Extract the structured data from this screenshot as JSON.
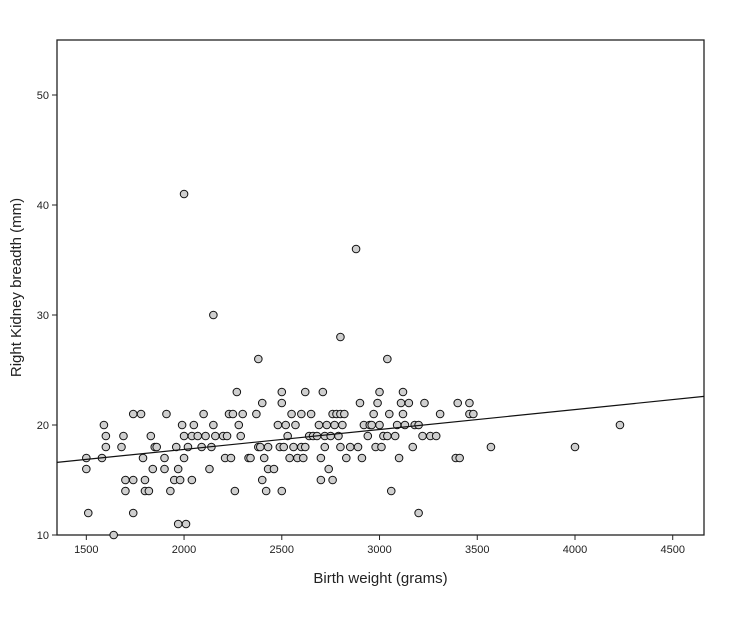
{
  "chart_data": {
    "type": "scatter",
    "xlabel": "Birth weight (grams)",
    "ylabel": "Right Kidney breadth (mm)",
    "xlim": [
      1350,
      4660
    ],
    "ylim": [
      10,
      55
    ],
    "xticks": [
      1500,
      2000,
      2500,
      3000,
      3500,
      4000,
      4500
    ],
    "yticks": [
      10,
      20,
      30,
      40,
      50
    ],
    "grid": false,
    "marker_fill": "#cfcfcf",
    "marker_edge": "#111111",
    "fit_line": {
      "x": [
        1350,
        4660
      ],
      "y": [
        16.6,
        22.6
      ],
      "color": "#111111"
    },
    "points": [
      [
        1500,
        17
      ],
      [
        1500,
        16
      ],
      [
        1510,
        12
      ],
      [
        1580,
        17
      ],
      [
        1590,
        20
      ],
      [
        1600,
        19
      ],
      [
        1600,
        18
      ],
      [
        1640,
        10
      ],
      [
        1680,
        18
      ],
      [
        1690,
        19
      ],
      [
        1700,
        15
      ],
      [
        1700,
        14
      ],
      [
        1740,
        21
      ],
      [
        1740,
        15
      ],
      [
        1740,
        12
      ],
      [
        1780,
        21
      ],
      [
        1790,
        17
      ],
      [
        1800,
        15
      ],
      [
        1800,
        14
      ],
      [
        1820,
        14
      ],
      [
        1830,
        19
      ],
      [
        1840,
        16
      ],
      [
        1850,
        18
      ],
      [
        1860,
        18
      ],
      [
        1900,
        17
      ],
      [
        1900,
        16
      ],
      [
        1910,
        21
      ],
      [
        1930,
        14
      ],
      [
        1950,
        15
      ],
      [
        1960,
        18
      ],
      [
        1970,
        16
      ],
      [
        1970,
        11
      ],
      [
        1980,
        15
      ],
      [
        1990,
        20
      ],
      [
        2000,
        41
      ],
      [
        2000,
        19
      ],
      [
        2000,
        17
      ],
      [
        2010,
        11
      ],
      [
        2020,
        18
      ],
      [
        2040,
        19
      ],
      [
        2040,
        15
      ],
      [
        2050,
        20
      ],
      [
        2070,
        19
      ],
      [
        2090,
        18
      ],
      [
        2100,
        21
      ],
      [
        2110,
        19
      ],
      [
        2130,
        16
      ],
      [
        2140,
        18
      ],
      [
        2150,
        30
      ],
      [
        2150,
        20
      ],
      [
        2160,
        19
      ],
      [
        2200,
        19
      ],
      [
        2210,
        17
      ],
      [
        2220,
        19
      ],
      [
        2230,
        21
      ],
      [
        2240,
        17
      ],
      [
        2250,
        21
      ],
      [
        2260,
        14
      ],
      [
        2270,
        23
      ],
      [
        2280,
        20
      ],
      [
        2290,
        19
      ],
      [
        2300,
        21
      ],
      [
        2330,
        17
      ],
      [
        2340,
        17
      ],
      [
        2370,
        21
      ],
      [
        2380,
        26
      ],
      [
        2380,
        18
      ],
      [
        2390,
        18
      ],
      [
        2400,
        22
      ],
      [
        2400,
        15
      ],
      [
        2410,
        17
      ],
      [
        2420,
        14
      ],
      [
        2430,
        18
      ],
      [
        2430,
        16
      ],
      [
        2460,
        16
      ],
      [
        2480,
        20
      ],
      [
        2490,
        18
      ],
      [
        2500,
        23
      ],
      [
        2500,
        22
      ],
      [
        2500,
        14
      ],
      [
        2510,
        18
      ],
      [
        2520,
        20
      ],
      [
        2530,
        19
      ],
      [
        2540,
        17
      ],
      [
        2550,
        21
      ],
      [
        2560,
        18
      ],
      [
        2570,
        20
      ],
      [
        2580,
        17
      ],
      [
        2600,
        21
      ],
      [
        2600,
        18
      ],
      [
        2610,
        17
      ],
      [
        2620,
        23
      ],
      [
        2620,
        18
      ],
      [
        2640,
        19
      ],
      [
        2650,
        21
      ],
      [
        2660,
        19
      ],
      [
        2680,
        19
      ],
      [
        2690,
        20
      ],
      [
        2700,
        17
      ],
      [
        2700,
        15
      ],
      [
        2710,
        23
      ],
      [
        2720,
        19
      ],
      [
        2720,
        18
      ],
      [
        2730,
        20
      ],
      [
        2740,
        16
      ],
      [
        2750,
        19
      ],
      [
        2760,
        21
      ],
      [
        2760,
        15
      ],
      [
        2770,
        20
      ],
      [
        2780,
        21
      ],
      [
        2790,
        19
      ],
      [
        2800,
        28
      ],
      [
        2800,
        21
      ],
      [
        2800,
        18
      ],
      [
        2810,
        20
      ],
      [
        2820,
        21
      ],
      [
        2830,
        17
      ],
      [
        2850,
        18
      ],
      [
        2880,
        36
      ],
      [
        2890,
        18
      ],
      [
        2900,
        22
      ],
      [
        2910,
        17
      ],
      [
        2920,
        20
      ],
      [
        2940,
        19
      ],
      [
        2950,
        20
      ],
      [
        2960,
        20
      ],
      [
        2970,
        21
      ],
      [
        2980,
        18
      ],
      [
        2990,
        22
      ],
      [
        3000,
        23
      ],
      [
        3000,
        20
      ],
      [
        3010,
        18
      ],
      [
        3020,
        19
      ],
      [
        3040,
        26
      ],
      [
        3040,
        19
      ],
      [
        3050,
        21
      ],
      [
        3060,
        14
      ],
      [
        3080,
        19
      ],
      [
        3090,
        20
      ],
      [
        3100,
        17
      ],
      [
        3110,
        22
      ],
      [
        3120,
        23
      ],
      [
        3120,
        21
      ],
      [
        3130,
        20
      ],
      [
        3150,
        22
      ],
      [
        3170,
        18
      ],
      [
        3180,
        20
      ],
      [
        3200,
        20
      ],
      [
        3200,
        12
      ],
      [
        3220,
        19
      ],
      [
        3230,
        22
      ],
      [
        3260,
        19
      ],
      [
        3290,
        19
      ],
      [
        3310,
        21
      ],
      [
        3390,
        17
      ],
      [
        3400,
        22
      ],
      [
        3410,
        17
      ],
      [
        3460,
        22
      ],
      [
        3460,
        21
      ],
      [
        3480,
        21
      ],
      [
        3570,
        18
      ],
      [
        4000,
        18
      ],
      [
        4230,
        20
      ]
    ]
  }
}
